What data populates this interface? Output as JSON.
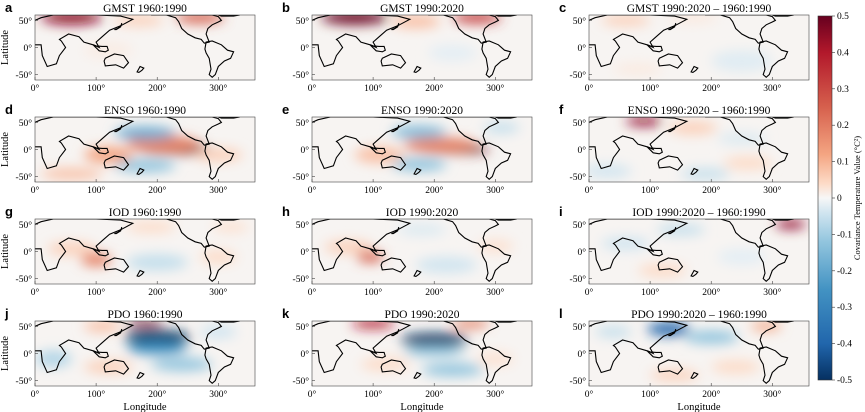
{
  "chart_data": {
    "type": "heatmap",
    "grid": {
      "rows": 4,
      "cols": 3
    },
    "panels": [
      {
        "letter": "a",
        "title": "GMST 1960:1990"
      },
      {
        "letter": "b",
        "title": "GMST 1990:2020"
      },
      {
        "letter": "c",
        "title": "GMST 1990:2020 – 1960:1990"
      },
      {
        "letter": "d",
        "title": "ENSO 1960:1990"
      },
      {
        "letter": "e",
        "title": "ENSO 1990:2020"
      },
      {
        "letter": "f",
        "title": "ENSO 1990:2020 – 1960:1990"
      },
      {
        "letter": "g",
        "title": "IOD 1960:1990"
      },
      {
        "letter": "h",
        "title": "IOD 1990:2020"
      },
      {
        "letter": "i",
        "title": "IOD 1990:2020 – 1960:1990"
      },
      {
        "letter": "j",
        "title": "PDO 1960:1990"
      },
      {
        "letter": "k",
        "title": "PDO 1990:2020"
      },
      {
        "letter": "l",
        "title": "PDO 1990:2020 – 1960:1990"
      }
    ],
    "xlabel": "Longitude",
    "ylabel": "Latitude",
    "xlim": [
      0,
      360
    ],
    "ylim": [
      -60,
      60
    ],
    "x_ticks": [
      "0°",
      "100°",
      "200°",
      "300°"
    ],
    "x_tick_values": [
      0,
      100,
      200,
      300
    ],
    "y_ticks": [
      "50°",
      "0°",
      "-50°"
    ],
    "y_tick_values": [
      50,
      0,
      -50
    ],
    "colorbar": {
      "label": "Covariance Temperature Value (°C²)",
      "range": [
        -0.5,
        0.5
      ],
      "ticks": [
        "0.5",
        "0.4",
        "0.3",
        "0.2",
        "0.1",
        "0",
        "-0.1",
        "-0.2",
        "-0.3",
        "-0.4",
        "-0.5"
      ],
      "tick_values": [
        0.5,
        0.4,
        0.3,
        0.2,
        0.1,
        0,
        -0.1,
        -0.2,
        -0.3,
        -0.4,
        -0.5
      ],
      "colormap": "red-white-blue diverging"
    },
    "colors": {
      "positive": "#8b0a1d",
      "neutral": "#f7f7f7",
      "negative": "#0d2f66",
      "coastline": "#000000"
    }
  }
}
